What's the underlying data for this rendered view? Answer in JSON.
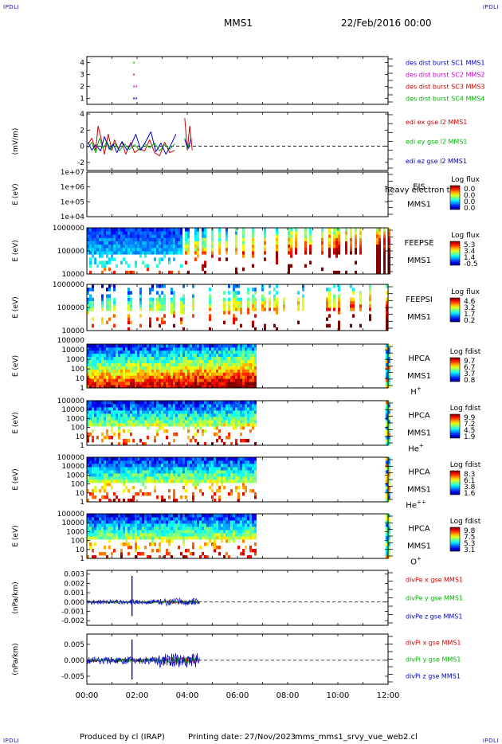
{
  "header": {
    "corner_label": "IPDLI",
    "spacecraft": "MMS1",
    "date": "22/Feb/2016 00:00"
  },
  "footer": {
    "produced_by": "Produced by cl (IRAP)",
    "printing_date": "Printing date: 27/Nov/2023",
    "script_name": "mms_mms1_srvy_vue_web2.cl"
  },
  "colors": {
    "mms1": "#0000c8",
    "mms2": "#c800c8",
    "mms3": "#c80000",
    "mms4": "#00b400",
    "x": "#c80000",
    "y": "#00b400",
    "z": "#0000c8"
  },
  "chart_data": [
    {
      "type": "scatter",
      "id": "burst",
      "ylim": [
        0.5,
        4.5
      ],
      "yticks": [
        1,
        2,
        3,
        4
      ],
      "legend": [
        {
          "label": "des dist burst SC1 MMS1",
          "color": "#0000c8"
        },
        {
          "label": "des dist burst SC2 MMS2",
          "color": "#c800c8"
        },
        {
          "label": "des dist burst SC3 MMS3",
          "color": "#c80000"
        },
        {
          "label": "des dist burst SC4 MMS4",
          "color": "#00b400"
        }
      ],
      "series": [
        {
          "name": "des dist burst SC1 MMS1",
          "color": "#0000c8",
          "level": 1,
          "x": [
            1.85,
            1.95
          ]
        },
        {
          "name": "des dist burst SC2 MMS2",
          "color": "#c800c8",
          "level": 2,
          "x": [
            1.85,
            1.95
          ]
        },
        {
          "name": "des dist burst SC3 MMS3",
          "color": "#c80000",
          "level": 3,
          "x": [
            1.85
          ]
        },
        {
          "name": "des dist burst SC4 MMS4",
          "color": "#00b400",
          "level": 4,
          "x": [
            1.85
          ]
        }
      ]
    },
    {
      "type": "line",
      "id": "edi",
      "ylabel": "(mV/m)",
      "ylim": [
        -3,
        4.2
      ],
      "yticks": [
        -2,
        0,
        2,
        4
      ],
      "legend": [
        {
          "label": "edi ex gse l2 MMS1",
          "color": "#c80000"
        },
        {
          "label": "edi ey gse l2 MMS1",
          "color": "#00b400"
        },
        {
          "label": "edi ez gse l2 MMS1",
          "color": "#0000c8"
        }
      ],
      "series": [
        {
          "name": "edi ex gse l2 MMS1",
          "color": "#c80000",
          "x": [
            0.05,
            0.2,
            0.35,
            0.45,
            0.6,
            0.7,
            0.85,
            1.0,
            1.1,
            1.25,
            1.4,
            1.55,
            1.75,
            1.9,
            2.1,
            2.3,
            2.5,
            2.7,
            2.9,
            3.1,
            3.3,
            3.5,
            3.9,
            4.0,
            4.1,
            4.2
          ],
          "y": [
            0.3,
            1.0,
            -0.5,
            2.5,
            0.5,
            -1.0,
            1.5,
            -0.5,
            0.8,
            -0.3,
            0.5,
            -1.0,
            0.5,
            -0.8,
            -0.3,
            -0.6,
            0.8,
            -0.8,
            -1.2,
            0.5,
            -0.8,
            -0.5,
            3.5,
            -0.5,
            2.5,
            -0.5
          ]
        },
        {
          "name": "edi ey gse l2 MMS1",
          "color": "#00b400",
          "x": [
            0.05,
            0.2,
            0.35,
            0.5,
            0.65,
            0.8,
            0.95,
            1.1,
            1.3,
            1.5,
            1.7,
            1.9,
            2.1,
            2.3,
            2.5,
            2.7,
            2.9,
            3.1,
            3.3,
            3.5,
            3.9,
            4.0,
            4.1
          ],
          "y": [
            -0.2,
            0.5,
            -0.8,
            1.0,
            -0.3,
            0.6,
            -0.5,
            0.4,
            -0.6,
            0.3,
            -0.4,
            0.2,
            -0.5,
            0.3,
            -0.2,
            0.4,
            -0.6,
            0.2,
            -0.4,
            0.3,
            1.0,
            -0.3,
            0.5
          ]
        },
        {
          "name": "edi ez gse l2 MMS1",
          "color": "#0000c8",
          "x": [
            0.05,
            0.2,
            0.35,
            0.55,
            0.7,
            0.9,
            1.05,
            1.2,
            1.4,
            1.6,
            1.8,
            1.95,
            2.15,
            2.35,
            2.55,
            2.75,
            2.95,
            3.15,
            3.35,
            3.55,
            3.9,
            4.05,
            4.15
          ],
          "y": [
            0.5,
            -0.5,
            0.2,
            -0.6,
            1.2,
            -0.4,
            0.3,
            -0.8,
            0.6,
            -0.5,
            0.4,
            1.5,
            -0.5,
            0.6,
            1.8,
            -0.7,
            0.4,
            -1.0,
            0.2,
            1.5,
            0.8,
            -0.3,
            1.0
          ]
        }
      ]
    },
    {
      "type": "heatmap",
      "id": "eis",
      "ylabel": "E (eV)",
      "yscale": "log",
      "ylim": [
        10000,
        10000000
      ],
      "yticks": [
        "1e+04",
        "1e+05",
        "1e+06",
        "1e+07"
      ],
      "instrument": [
        "EIS",
        "MMS1"
      ],
      "overlay_text": "heavy electron to",
      "colorbar": {
        "title": "Log flux",
        "ticks": [
          "0.0",
          "0.0",
          "0.0",
          "0.0"
        ]
      },
      "data_coverage": []
    },
    {
      "type": "heatmap",
      "id": "feepse",
      "ylabel": "E (eV)",
      "yscale": "log",
      "ylim": [
        10000,
        1000000
      ],
      "yticks": [
        "10000",
        "100000",
        "1000000"
      ],
      "instrument": [
        "FEEPSE",
        "MMS1"
      ],
      "colorbar": {
        "title": "Log flux",
        "ticks": [
          "5.3",
          "3.4",
          "1.4",
          "-0.5"
        ]
      },
      "data_coverage": [
        [
          0,
          12
        ]
      ]
    },
    {
      "type": "heatmap",
      "id": "feepsi",
      "ylabel": "E (eV)",
      "yscale": "log",
      "ylim": [
        10000,
        1000000
      ],
      "yticks": [
        "10000",
        "100000",
        "1000000"
      ],
      "instrument": [
        "FEEPSI",
        "MMS1"
      ],
      "colorbar": {
        "title": "Log flux",
        "ticks": [
          "4.6",
          "3.2",
          "1.7",
          "0.2"
        ]
      },
      "data_coverage": [
        [
          0,
          12
        ]
      ]
    },
    {
      "type": "heatmap",
      "id": "hpca_h",
      "ylabel": "E (eV)",
      "yscale": "log",
      "ylim": [
        1,
        40000
      ],
      "yticks": [
        "1",
        "10",
        "100",
        "1000",
        "10000"
      ],
      "extra_ticks": [
        "100000"
      ],
      "instrument": [
        "HPCA",
        "MMS1"
      ],
      "species": "H",
      "species_sup": "+",
      "colorbar": {
        "title": "Log fdist",
        "ticks": [
          "9.7",
          "6.7",
          "3.7",
          "0.8"
        ]
      },
      "data_coverage": [
        [
          0,
          6.7
        ],
        [
          11.9,
          12
        ]
      ]
    },
    {
      "type": "heatmap",
      "id": "hpca_he",
      "ylabel": "E (eV)",
      "yscale": "log",
      "ylim": [
        1,
        100000
      ],
      "yticks": [
        "1",
        "10",
        "100",
        "1000",
        "10000",
        "100000"
      ],
      "instrument": [
        "HPCA",
        "MMS1"
      ],
      "species": "He",
      "species_sup": "+",
      "colorbar": {
        "title": "Log fdist",
        "ticks": [
          "9.9",
          "7.2",
          "4.5",
          "1.9"
        ]
      },
      "data_coverage": [
        [
          0,
          6.7
        ],
        [
          11.9,
          12
        ]
      ]
    },
    {
      "type": "heatmap",
      "id": "hpca_hepp",
      "ylabel": "E (eV)",
      "yscale": "log",
      "ylim": [
        1,
        100000
      ],
      "yticks": [
        "1",
        "10",
        "100",
        "1000",
        "10000",
        "100000"
      ],
      "instrument": [
        "HPCA",
        "MMS1"
      ],
      "species": "He",
      "species_sup": "++",
      "colorbar": {
        "title": "Log fdist",
        "ticks": [
          "8.3",
          "6.1",
          "3.8",
          "1.6"
        ]
      },
      "data_coverage": [
        [
          0,
          6.7
        ],
        [
          11.9,
          12
        ]
      ]
    },
    {
      "type": "heatmap",
      "id": "hpca_o",
      "ylabel": "E (eV)",
      "yscale": "log",
      "ylim": [
        1,
        100000
      ],
      "yticks": [
        "1",
        "10",
        "100",
        "1000",
        "10000",
        "100000"
      ],
      "instrument": [
        "HPCA",
        "MMS1"
      ],
      "species": "O",
      "species_sup": "+",
      "colorbar": {
        "title": "Log fdist",
        "ticks": [
          "9.8",
          "7.5",
          "5.3",
          "3.1"
        ]
      },
      "data_coverage": [
        [
          0,
          6.7
        ],
        [
          11.9,
          12
        ]
      ]
    },
    {
      "type": "line",
      "id": "divpe",
      "ylabel": "(nPa/km)",
      "ylim": [
        -0.0025,
        0.0034
      ],
      "yticks": [
        "-0.002",
        "-0.001",
        "0.000",
        "0.001",
        "0.002",
        "0.003"
      ],
      "legend": [
        {
          "label": "divPe x gse MMS1",
          "color": "#c80000"
        },
        {
          "label": "divPe y gse MMS1",
          "color": "#00b400"
        },
        {
          "label": "divPe z gse MMS1",
          "color": "#0000c8"
        }
      ],
      "data_coverage": [
        0,
        4.5
      ],
      "spike": {
        "x": 1.8,
        "ymax": 0.0028,
        "ymin": -0.0015
      },
      "noise_amplitude": 0.00025
    },
    {
      "type": "line",
      "id": "divpi",
      "ylabel": "(nPa/km)",
      "ylim": [
        -0.0075,
        0.0082
      ],
      "yticks": [
        "-0.005",
        "0.000",
        "0.005"
      ],
      "legend": [
        {
          "label": "divPi x gse MMS1",
          "color": "#c80000"
        },
        {
          "label": "divPi y gse MMS1",
          "color": "#00b400"
        },
        {
          "label": "divPi z gse MMS1",
          "color": "#0000c8"
        }
      ],
      "data_coverage": [
        0,
        4.5
      ],
      "spike": {
        "x": 1.8,
        "ymax": 0.0065,
        "ymin": -0.006
      },
      "noise_amplitude": 0.0012
    }
  ],
  "xaxis": {
    "xlim": [
      0,
      12
    ],
    "ticks": [
      "00:00",
      "02:00",
      "04:00",
      "06:00",
      "08:00",
      "10:00",
      "12:00"
    ]
  }
}
